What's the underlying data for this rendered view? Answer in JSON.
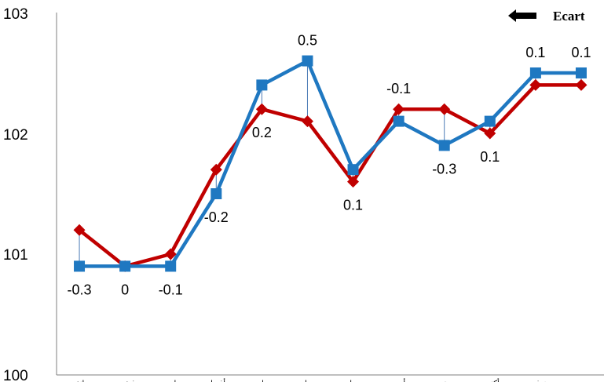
{
  "chart_data": {
    "type": "line",
    "ylim": [
      100,
      103
    ],
    "y_ticks": [
      100,
      101,
      102,
      103
    ],
    "grid": false,
    "legend_placement": "top-right",
    "legend": {
      "label": "Ecart"
    },
    "categories": [
      "جانفي",
      "فيفري",
      "مارس",
      "أفريل",
      "ماي",
      "جوان",
      "جويلية",
      "أوت",
      "سبتمبر",
      "أكتوبر",
      "نوفمبر",
      "ديسمبر"
    ],
    "series": [
      {
        "color": "#c00000",
        "marker": "diamond",
        "values": [
          101.2,
          100.9,
          101.0,
          101.7,
          102.2,
          102.1,
          101.6,
          102.2,
          102.2,
          102.0,
          102.4,
          102.4
        ]
      },
      {
        "color": "#1f78c1",
        "marker": "square",
        "values": [
          100.9,
          100.9,
          100.9,
          101.5,
          102.4,
          102.6,
          101.7,
          102.1,
          101.9,
          102.1,
          102.5,
          102.5
        ]
      }
    ],
    "ecart": [
      "-0.3",
      "0",
      "-0.1",
      "-0.2",
      "0.2",
      "0.5",
      "0.1",
      "-0.1",
      "-0.3",
      "0.1",
      "0.1",
      "0.1"
    ],
    "colors": {
      "ecart_line": "#4a7ab5",
      "axis": "#7f7f7f"
    }
  }
}
